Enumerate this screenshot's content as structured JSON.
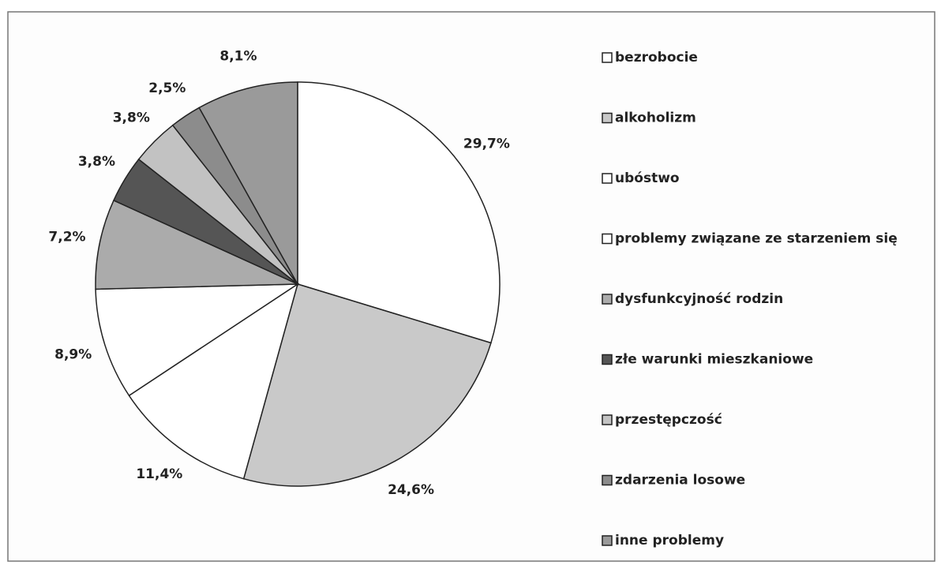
{
  "chart_data": {
    "type": "pie",
    "categories": [
      "bezrobocie",
      "alkoholizm",
      "ubóstwo",
      "problemy związane ze starzeniem się",
      "dysfunkcyjność rodzin",
      "złe warunki mieszkaniowe",
      "przestępczość",
      "zdarzenia losowe",
      "inne problemy"
    ],
    "values": [
      29.7,
      24.6,
      11.4,
      8.9,
      7.2,
      3.8,
      3.8,
      2.5,
      8.1
    ],
    "value_labels": [
      "29,7%",
      "24,6%",
      "11,4%",
      "8,9%",
      "7,2%",
      "3,8%",
      "3,8%",
      "2,5%",
      "8,1%"
    ],
    "colors": [
      "#ffffff",
      "#c9c9c9",
      "#ffffff",
      "#ffffff",
      "#ababab",
      "#555555",
      "#c2c2c2",
      "#8c8c8c",
      "#9a9a9a"
    ],
    "legend": "right"
  }
}
